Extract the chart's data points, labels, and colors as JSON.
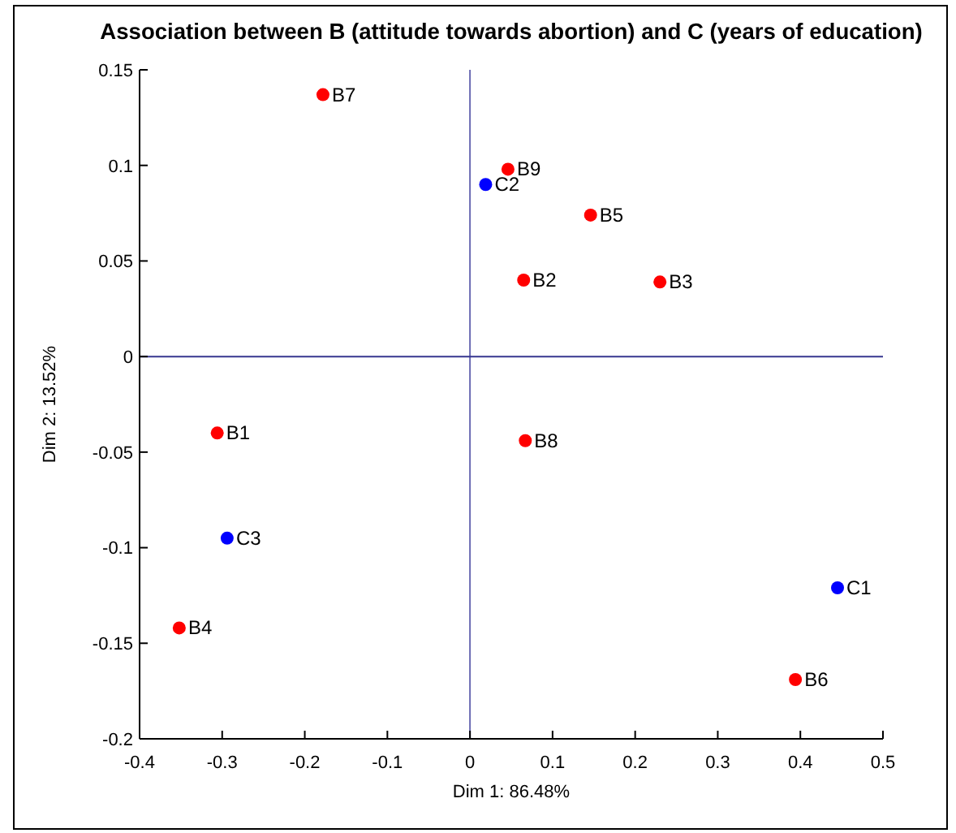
{
  "chart_data": {
    "type": "scatter",
    "title": "Association between B (attitude towards abortion) and C (years of education)",
    "xlabel": "Dim 1: 86.48%",
    "ylabel": "Dim 2: 13.52%",
    "series": [
      {
        "color": "#ff0000",
        "x": [
          -0.306,
          0.065,
          0.23,
          -0.352,
          0.146,
          0.394,
          -0.178,
          0.067,
          0.046
        ],
        "values": [
          -0.04,
          0.04,
          0.039,
          -0.142,
          0.074,
          -0.169,
          0.137,
          -0.044,
          0.098
        ],
        "value_labels": [
          "B1",
          "B2",
          "B3",
          "B4",
          "B5",
          "B6",
          "B7",
          "B8",
          "B9"
        ]
      },
      {
        "color": "#0000ff",
        "x": [
          0.445,
          0.019,
          -0.294
        ],
        "values": [
          -0.121,
          0.09,
          -0.095
        ],
        "value_labels": [
          "C1",
          "C2",
          "C3"
        ]
      }
    ],
    "xlim": [
      -0.4,
      0.5
    ],
    "ylim": [
      -0.2,
      0.15
    ],
    "xticks": [
      -0.4,
      -0.3,
      -0.2,
      -0.1,
      0,
      0.1,
      0.2,
      0.3,
      0.4,
      0.5
    ],
    "yticks": [
      -0.2,
      -0.15,
      -0.1,
      -0.05,
      0,
      0.05,
      0.1,
      0.15
    ],
    "ref_lines": [
      {
        "axis": "x",
        "value": 0,
        "color": "#6b6bb3"
      },
      {
        "axis": "y",
        "value": 0,
        "color": "#36368f"
      }
    ],
    "marker": "circle"
  }
}
